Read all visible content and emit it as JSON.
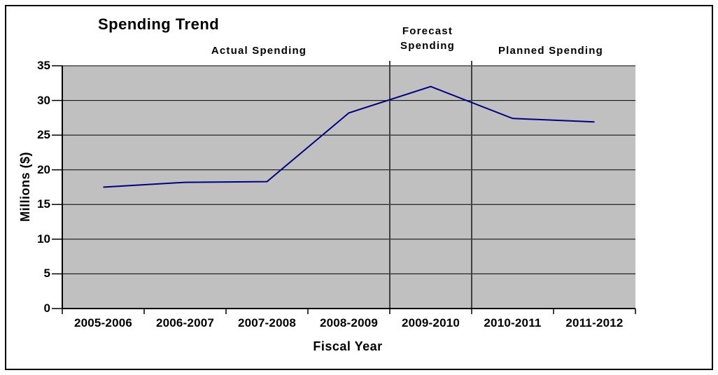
{
  "chart_data": {
    "type": "line",
    "title": "Spending Trend",
    "xlabel": "Fiscal Year",
    "ylabel": "Millions ($)",
    "categories": [
      "2005-2006",
      "2006-2007",
      "2007-2008",
      "2008-2009",
      "2009-2010",
      "2010-2011",
      "2011-2012"
    ],
    "values": [
      17.5,
      18.2,
      18.3,
      28.2,
      32,
      27.4,
      26.9
    ],
    "ylim": [
      0,
      35
    ],
    "yticks": [
      0,
      5,
      10,
      15,
      20,
      25,
      30,
      35
    ],
    "grid": "horizontal",
    "legend": "none",
    "regions": [
      {
        "label": "Actual Spending",
        "from": "2005-2006",
        "to": "2008-2009"
      },
      {
        "label": "Forecast Spending",
        "from": "2009-2010",
        "to": "2009-2010"
      },
      {
        "label": "Planned Spending",
        "from": "2010-2011",
        "to": "2011-2012"
      }
    ],
    "divider_before_category_index": [
      4,
      5
    ],
    "colors": {
      "line": "#000080",
      "plot_background": "#c0c0c0",
      "divider": "#404040",
      "axis": "#000000",
      "text": "#000000"
    }
  }
}
